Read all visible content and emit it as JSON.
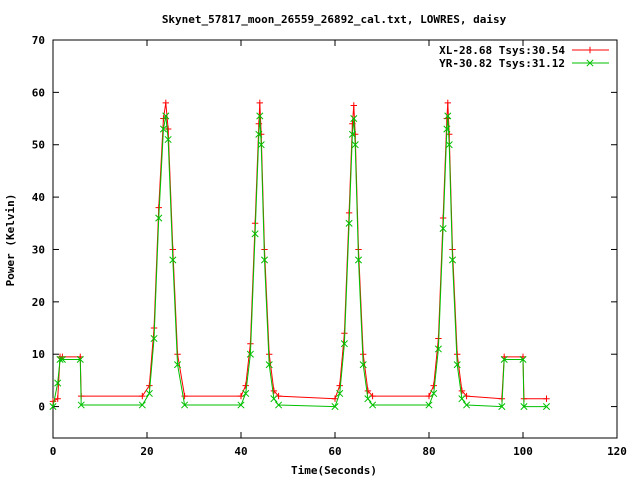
{
  "chart_data": {
    "type": "line",
    "title": "Skynet_57817_moon_26559_26892_cal.txt, LOWRES, daisy",
    "xlabel": "Time(Seconds)",
    "ylabel": "Power (Kelvin)",
    "xlim": [
      0,
      120
    ],
    "ylim": [
      -6,
      70
    ],
    "xticks": [
      0,
      20,
      40,
      60,
      80,
      100,
      120
    ],
    "yticks": [
      0,
      10,
      20,
      30,
      40,
      50,
      60,
      70
    ],
    "legend_position": "top-right",
    "series": [
      {
        "name": "XL-28.68 Tsys:30.54",
        "color": "#ff0000",
        "marker": "plus",
        "x": [
          0,
          1,
          1.5,
          2,
          5.8,
          6,
          19,
          20.5,
          21.5,
          22.5,
          23.5,
          24,
          24.5,
          25.5,
          26.5,
          28,
          40,
          41,
          42,
          43,
          43.8,
          44,
          44.3,
          45,
          46,
          47,
          48,
          60,
          61,
          62,
          63,
          63.7,
          64,
          64.3,
          65,
          66,
          67,
          68,
          80,
          81,
          82,
          83,
          83.8,
          84,
          84.3,
          85,
          86,
          87,
          88,
          95.5,
          96,
          100,
          100.2,
          105
        ],
        "y": [
          1,
          1.5,
          9.5,
          9.5,
          9.5,
          2,
          2,
          4,
          15,
          38,
          55,
          58,
          53,
          30,
          10,
          2,
          2,
          4,
          12,
          35,
          54,
          58,
          52,
          30,
          10,
          3,
          2,
          1.5,
          4,
          14,
          37,
          54,
          57.5,
          52,
          30,
          10,
          3,
          2,
          2,
          4,
          13,
          36,
          55,
          58,
          52,
          30,
          10,
          3,
          2,
          1.5,
          9.5,
          9.5,
          1.5,
          1.5
        ]
      },
      {
        "name": "YR-30.82 Tsys:31.12",
        "color": "#00c000",
        "marker": "x",
        "x": [
          0,
          1,
          1.5,
          2,
          5.8,
          6,
          19,
          20.5,
          21.5,
          22.5,
          23.5,
          24,
          24.5,
          25.5,
          26.5,
          28,
          40,
          41,
          42,
          43,
          43.8,
          44,
          44.3,
          45,
          46,
          47,
          48,
          60,
          61,
          62,
          63,
          63.7,
          64,
          64.3,
          65,
          66,
          67,
          68,
          80,
          81,
          82,
          83,
          83.8,
          84,
          84.3,
          85,
          86,
          87,
          88,
          95.5,
          96,
          100,
          100.2,
          105
        ],
        "y": [
          0,
          4.5,
          9,
          9,
          9,
          0.3,
          0.3,
          2.5,
          13,
          36,
          53,
          55.5,
          51,
          28,
          8,
          0.3,
          0.3,
          2.5,
          10,
          33,
          52,
          55.5,
          50,
          28,
          8,
          1.5,
          0.3,
          0,
          2.5,
          12,
          35,
          52,
          55,
          50,
          28,
          8,
          1.5,
          0.3,
          0.3,
          2.5,
          11,
          34,
          53,
          55.5,
          50,
          28,
          8,
          1.5,
          0.3,
          0,
          9,
          9,
          0,
          0
        ]
      }
    ]
  }
}
